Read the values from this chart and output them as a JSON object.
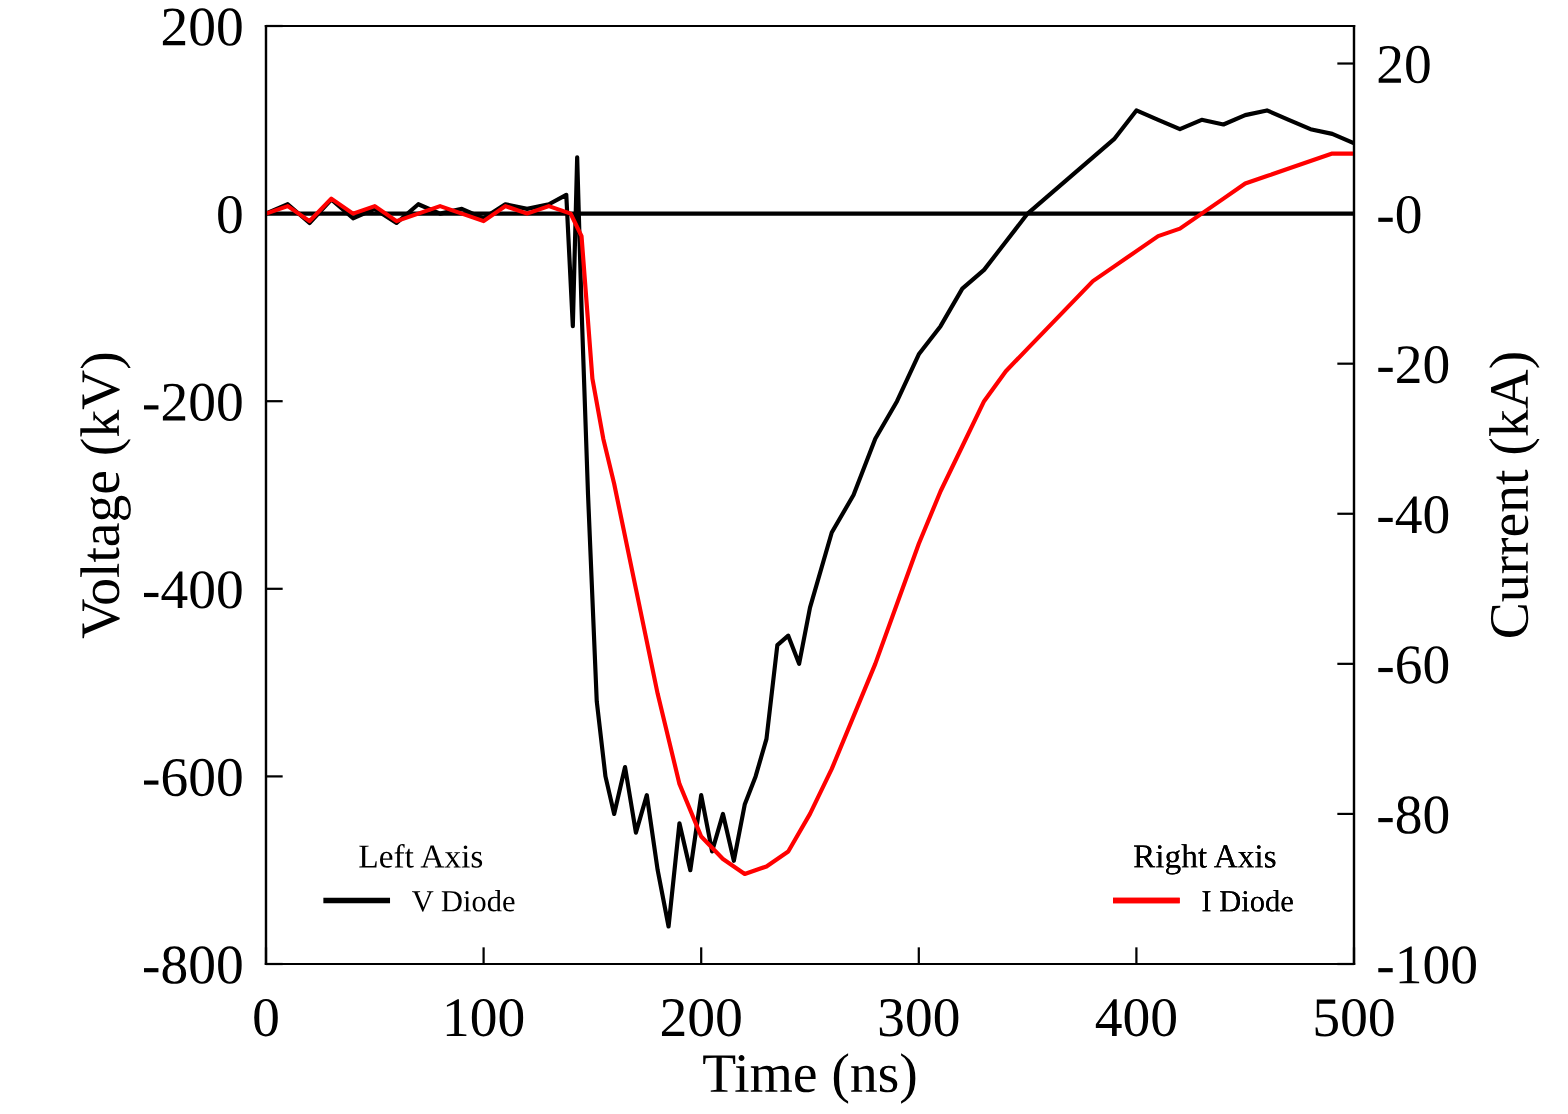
{
  "chart_data": {
    "type": "line",
    "xlabel": "Time (ns)",
    "ylabel": "Voltage (kV)",
    "y2label": "Current (kA)",
    "annotations": [
      "Left Axis",
      "Right Axis"
    ],
    "series": [
      {
        "name": "V Diode",
        "color": "#000000",
        "x": [
          0,
          10,
          20,
          30,
          40,
          50,
          60,
          70,
          80,
          90,
          100,
          110,
          120,
          130,
          138,
          141,
          143,
          145,
          148,
          152,
          156,
          160,
          165,
          170,
          175,
          180,
          185,
          190,
          195,
          200,
          205,
          210,
          215,
          220,
          225,
          230,
          235,
          240,
          245,
          250,
          260,
          270,
          280,
          290,
          300,
          310,
          320,
          330,
          340,
          350,
          360,
          370,
          380,
          390,
          400,
          410,
          420,
          430,
          440,
          450,
          460,
          470,
          480,
          490,
          500
        ],
        "values": [
          0,
          10,
          -10,
          15,
          -5,
          5,
          -10,
          10,
          0,
          5,
          -5,
          10,
          5,
          10,
          20,
          -120,
          60,
          -100,
          -300,
          -520,
          -600,
          -640,
          -590,
          -660,
          -620,
          -700,
          -760,
          -650,
          -700,
          -620,
          -680,
          -640,
          -690,
          -630,
          -600,
          -560,
          -460,
          -450,
          -480,
          -420,
          -340,
          -300,
          -240,
          -200,
          -150,
          -120,
          -80,
          -60,
          -30,
          0,
          20,
          40,
          60,
          80,
          110,
          100,
          90,
          100,
          95,
          105,
          110,
          100,
          90,
          85,
          75
        ]
      },
      {
        "name": "I Diode",
        "color": "#ff0000",
        "axis": "y2",
        "x": [
          0,
          10,
          20,
          30,
          40,
          50,
          60,
          70,
          80,
          90,
          100,
          110,
          120,
          130,
          140,
          145,
          150,
          155,
          160,
          170,
          180,
          190,
          200,
          210,
          220,
          230,
          240,
          250,
          260,
          270,
          280,
          290,
          300,
          310,
          320,
          330,
          340,
          350,
          360,
          370,
          380,
          390,
          400,
          410,
          420,
          430,
          440,
          450,
          460,
          470,
          480,
          490,
          500
        ],
        "values": [
          0,
          1,
          -1,
          2,
          0,
          1,
          -1,
          0,
          1,
          0,
          -1,
          1,
          0,
          1,
          0,
          -3,
          -22,
          -30,
          -36,
          -50,
          -64,
          -76,
          -83,
          -86,
          -88,
          -87,
          -85,
          -80,
          -74,
          -67,
          -60,
          -52,
          -44,
          -37,
          -31,
          -25,
          -21,
          -18,
          -15,
          -12,
          -9,
          -7,
          -5,
          -3,
          -2,
          0,
          2,
          4,
          5,
          6,
          7,
          8,
          8
        ]
      }
    ],
    "ref_lines": [
      {
        "axis": "y",
        "value": 0,
        "color": "#000000"
      }
    ],
    "xlim": [
      0,
      500
    ],
    "xticks": [
      0,
      100,
      200,
      300,
      400,
      500
    ],
    "ylim": [
      -800,
      200
    ],
    "yticks": [
      -800,
      -600,
      -400,
      -200,
      0,
      200
    ],
    "y2lim": [
      -100,
      25
    ],
    "y2ticks": [
      -100,
      -80,
      -60,
      -40,
      -20,
      {
        "value": 0,
        "label": "-0"
      },
      20
    ],
    "legend": "bottom",
    "grid": false
  }
}
